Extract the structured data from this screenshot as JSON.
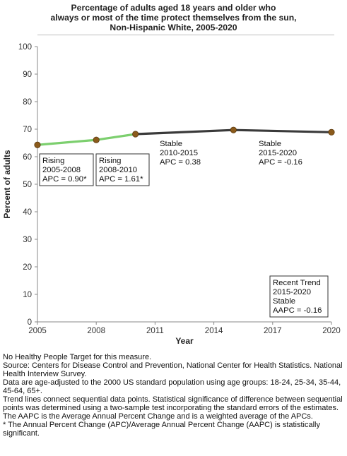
{
  "title_lines": [
    "Percentage of adults aged 18 years and older who",
    "always or most of the time protect themselves from the sun,",
    "Non-Hispanic White,  2005-2020"
  ],
  "chart_data": {
    "type": "line",
    "xlabel": "Year",
    "ylabel": "Percent of adults",
    "xlim": [
      2005,
      2020
    ],
    "ylim": [
      0,
      100
    ],
    "xticks": [
      2005,
      2008,
      2011,
      2014,
      2017,
      2020
    ],
    "yticks": [
      0,
      10,
      20,
      30,
      40,
      50,
      60,
      70,
      80,
      90,
      100
    ],
    "grid": false,
    "points": [
      {
        "x": 2005,
        "y": 64.3
      },
      {
        "x": 2008,
        "y": 66.1
      },
      {
        "x": 2010,
        "y": 68.2
      },
      {
        "x": 2015,
        "y": 69.7
      },
      {
        "x": 2020,
        "y": 68.9
      }
    ],
    "segments": [
      {
        "from": 2005,
        "to": 2010,
        "trend": "Rising",
        "color": "#7ccf6e"
      },
      {
        "from": 2010,
        "to": 2020,
        "trend": "Stable",
        "color": "#3a3a3a"
      }
    ],
    "annotations": [
      {
        "lines": [
          "Rising",
          "2005-2008",
          "APC =  0.90*"
        ],
        "boxed": true
      },
      {
        "lines": [
          "Rising",
          "2008-2010",
          "APC =  1.61*"
        ],
        "boxed": true
      },
      {
        "lines": [
          "Stable",
          "2010-2015",
          "APC =  0.38"
        ],
        "boxed": false
      },
      {
        "lines": [
          "Stable",
          "2015-2020",
          "APC = -0.16"
        ],
        "boxed": false
      },
      {
        "lines": [
          "Recent Trend",
          "2015-2020",
          "Stable",
          "AAPC = -0.16"
        ],
        "boxed": true
      }
    ],
    "marker_color": "#8b5a1b"
  },
  "footnotes": [
    "No Healthy People Target for this measure.",
    "Source: Centers for Disease Control and Prevention, National Center for Health Statistics. National Health Interview Survey.",
    "Data are age-adjusted to the 2000 US standard population using age groups: 18-24, 25-34, 35-44, 45-64, 65+.",
    "Trend lines connect sequential data points. Statistical significance of difference between sequential points was determined using a two-sample test incorporating the standard errors of the estimates.",
    "The AAPC is the Average Annual Percent Change and is a weighted average of the APCs.",
    "* The Annual Percent Change (APC)/Average Annual Percent Change (AAPC) is statistically significant."
  ]
}
